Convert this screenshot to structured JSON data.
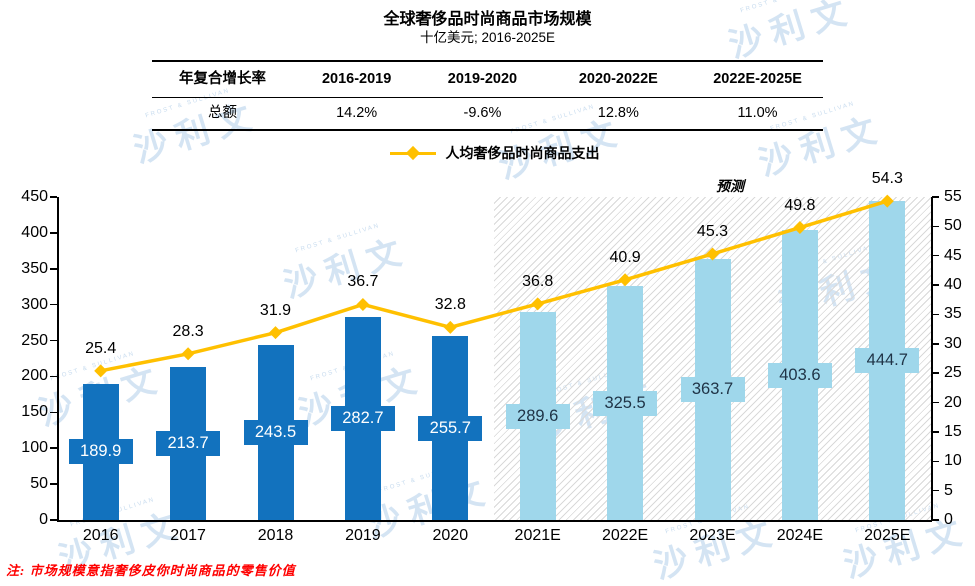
{
  "header": {
    "title": "全球奢侈品时尚商品市场规模",
    "subtitle": "十亿美元; 2016-2025E"
  },
  "table": {
    "headers": [
      "年复合增长率",
      "2016-2019",
      "2019-2020",
      "2020-2022E",
      "2022E-2025E"
    ],
    "rows": [
      [
        "总额",
        "14.2%",
        "-9.6%",
        "12.8%",
        "11.0%"
      ]
    ]
  },
  "legend": {
    "label": "人均奢侈品时尚商品支出"
  },
  "forecast_label": "预测",
  "note": "注: 市场规模意指奢侈皮你时尚商品的零售价值",
  "watermark": {
    "text": "沙利文",
    "subtext": "FROST & SULLIVAN"
  },
  "colors": {
    "bar_actual": "#1272BE",
    "bar_forecast": "#9FD7EB",
    "bar_label_on_actual": "#FFFFFF",
    "bar_label_on_forecast": "#1F3346",
    "line": "#FFC000",
    "note_red": "#FF0000",
    "axis": "#000000"
  },
  "chart_data": {
    "type": "bar",
    "title": "全球奢侈品时尚商品市场规模",
    "subtitle": "十亿美元; 2016-2025E",
    "categories": [
      "2016",
      "2017",
      "2018",
      "2019",
      "2020",
      "2021E",
      "2022E",
      "2023E",
      "2024E",
      "2025E"
    ],
    "series": [
      {
        "name": "全球奢侈品时尚商品市场规模",
        "type": "bar",
        "axis": "left",
        "values": [
          189.9,
          213.7,
          243.5,
          282.7,
          255.7,
          289.6,
          325.5,
          363.7,
          403.6,
          444.7
        ]
      },
      {
        "name": "人均奢侈品时尚商品支出",
        "type": "line",
        "axis": "right",
        "values": [
          25.4,
          28.3,
          31.9,
          36.7,
          32.8,
          36.8,
          40.9,
          45.3,
          49.8,
          54.3
        ]
      }
    ],
    "forecast_start_index": 5,
    "left_axis": {
      "min": 0,
      "max": 450,
      "step": 50
    },
    "right_axis": {
      "min": 0,
      "max": 55,
      "step": 5
    },
    "grid": false,
    "legend_position": "top",
    "cagr_table": {
      "headers": [
        "年复合增长率",
        "2016-2019",
        "2019-2020",
        "2020-2022E",
        "2022E-2025E"
      ],
      "rows": [
        [
          "总额",
          "14.2%",
          "-9.6%",
          "12.8%",
          "11.0%"
        ]
      ]
    }
  }
}
